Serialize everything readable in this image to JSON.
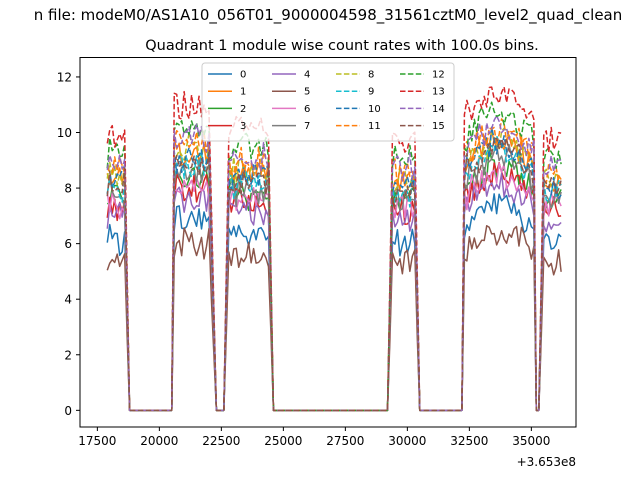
{
  "figure": {
    "suptitle": "n file: modeM0/AS1A10_056T01_9000004598_31561cztM0_level2_quad_clean"
  },
  "chart_data": {
    "type": "line",
    "title": "Quadrant 1 module wise count rates with 100.0s bins.",
    "xlabel": "",
    "ylabel": "",
    "x_offset_label": "+3.653e8",
    "xlim": [
      16800,
      36800
    ],
    "ylim": [
      -0.6,
      12.7
    ],
    "xticks": [
      17500,
      20000,
      22500,
      25000,
      27500,
      30000,
      32500,
      35000
    ],
    "yticks": [
      0,
      2,
      4,
      6,
      8,
      10,
      12
    ],
    "grid": false,
    "legend": {
      "placement": "top-center",
      "ncol": 4
    },
    "x_range": [
      17900,
      36200
    ],
    "bin_s": 100,
    "active_intervals": [
      {
        "start": 17900,
        "end": 18600,
        "fall_end": 18800
      },
      {
        "start": 20600,
        "end": 22000,
        "rise_start": 20500,
        "fall_end": 22300
      },
      {
        "start": 22800,
        "end": 24400,
        "rise_start": 22600,
        "fall_end": 24600
      },
      {
        "start": 29400,
        "end": 30300,
        "rise_start": 29200,
        "fall_end": 30500
      },
      {
        "start": 32300,
        "end": 35100,
        "rise_start": 32200,
        "fall_end": 35200
      },
      {
        "start": 35500,
        "end": 36200,
        "rise_start": 35300,
        "fall_end": 35500
      }
    ],
    "series": [
      {
        "name": "0",
        "color": "#1f77b4",
        "dashed": false,
        "level": 6.2
      },
      {
        "name": "1",
        "color": "#ff7f0e",
        "dashed": false,
        "level": 8.4
      },
      {
        "name": "2",
        "color": "#2ca02c",
        "dashed": false,
        "level": 7.6
      },
      {
        "name": "3",
        "color": "#d62728",
        "dashed": false,
        "level": 7.3
      },
      {
        "name": "4",
        "color": "#9467bd",
        "dashed": false,
        "level": 7.0
      },
      {
        "name": "5",
        "color": "#8c564b",
        "dashed": false,
        "level": 5.4
      },
      {
        "name": "6",
        "color": "#e377c2",
        "dashed": false,
        "level": 7.4
      },
      {
        "name": "7",
        "color": "#7f7f7f",
        "dashed": false,
        "level": 7.8
      },
      {
        "name": "8",
        "color": "#bcbd22",
        "dashed": true,
        "level": 8.5
      },
      {
        "name": "9",
        "color": "#17becf",
        "dashed": true,
        "level": 8.0
      },
      {
        "name": "10",
        "color": "#1f77b4",
        "dashed": true,
        "level": 8.3
      },
      {
        "name": "11",
        "color": "#ff7f0e",
        "dashed": true,
        "level": 8.7
      },
      {
        "name": "12",
        "color": "#2ca02c",
        "dashed": true,
        "level": 9.3
      },
      {
        "name": "13",
        "color": "#d62728",
        "dashed": true,
        "level": 9.9
      },
      {
        "name": "14",
        "color": "#9467bd",
        "dashed": true,
        "level": 8.9
      },
      {
        "name": "15",
        "color": "#8c564b",
        "dashed": true,
        "level": 8.1
      }
    ],
    "profile_scale": [
      {
        "interval": 0,
        "scale": 1.0
      },
      {
        "interval": 1,
        "scale": 1.1
      },
      {
        "interval": 2,
        "scale": 1.02
      },
      {
        "interval": 3,
        "scale": 0.98
      },
      {
        "interval": 4,
        "scale": 1.08
      },
      {
        "interval": 5,
        "scale": 0.98
      }
    ]
  }
}
